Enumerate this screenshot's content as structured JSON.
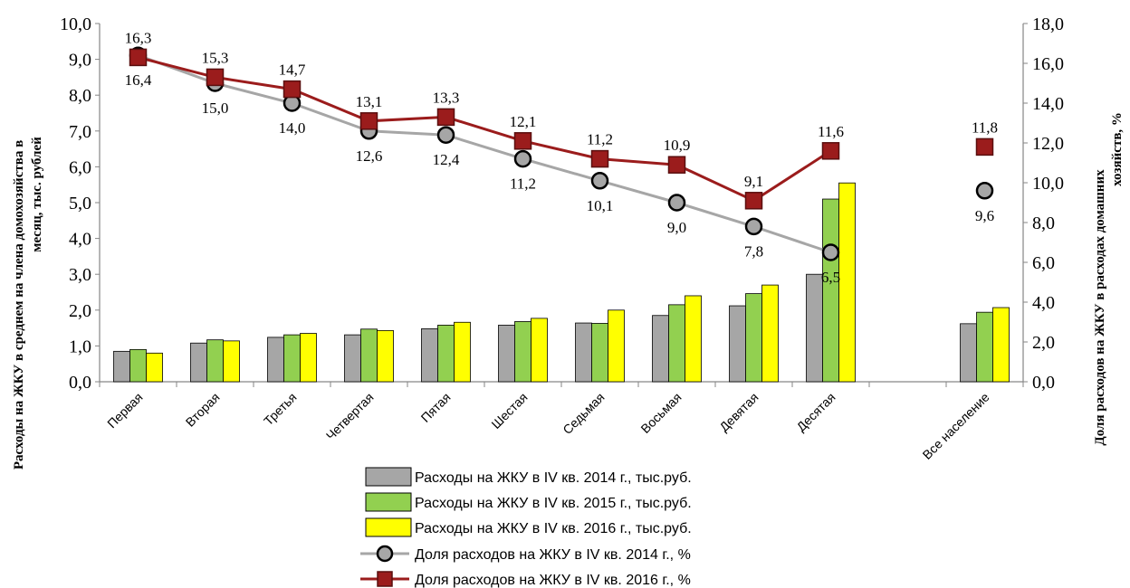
{
  "chart_data": {
    "type": "bar+line",
    "categories": [
      "Первая",
      "Вторая",
      "Третья",
      "Четвертая",
      "Пятая",
      "Шестая",
      "Седьмая",
      "Восьмая",
      "Девятая",
      "Десятая",
      "",
      "Все население"
    ],
    "bar_series": [
      {
        "name": "Расходы на ЖКУ в IV кв. 2014 г., тыс.руб.",
        "color": "#a6a6a6",
        "values": [
          0.85,
          1.08,
          1.24,
          1.31,
          1.48,
          1.58,
          1.64,
          1.85,
          2.12,
          3.0,
          null,
          1.62
        ]
      },
      {
        "name": "Расходы на ЖКУ в IV кв. 2015 г., тыс.руб.",
        "color": "#92d050",
        "values": [
          0.9,
          1.17,
          1.31,
          1.47,
          1.58,
          1.68,
          1.63,
          2.15,
          2.46,
          5.1,
          null,
          1.94
        ]
      },
      {
        "name": "Расходы на ЖКУ в IV кв. 2016 г., тыс.руб.",
        "color": "#ffff00",
        "values": [
          0.8,
          1.14,
          1.35,
          1.43,
          1.66,
          1.77,
          2.0,
          2.4,
          2.7,
          5.55,
          null,
          2.07
        ]
      }
    ],
    "line_series": [
      {
        "name": "Доля расходов на ЖКУ в IV кв. 2014 г., %",
        "color": "#a6a6a6",
        "marker": "circle",
        "values": [
          16.4,
          15.0,
          14.0,
          12.6,
          12.4,
          11.2,
          10.1,
          9.0,
          7.8,
          6.5,
          null,
          9.6
        ],
        "labels": [
          "16,4",
          "15,0",
          "14,0",
          "12,6",
          "12,4",
          "11,2",
          "10,1",
          "9,0",
          "7,8",
          "6,5",
          "",
          "9,6"
        ]
      },
      {
        "name": "Доля расходов на ЖКУ в IV кв. 2016 г., %",
        "color": "#9b1c1c",
        "marker": "square",
        "values": [
          16.3,
          15.3,
          14.7,
          13.1,
          13.3,
          12.1,
          11.2,
          10.9,
          9.1,
          11.6,
          null,
          11.8
        ],
        "labels": [
          "16,3",
          "15,3",
          "14,7",
          "13,1",
          "13,3",
          "12,1",
          "11,2",
          "10,9",
          "9,1",
          "11,6",
          "",
          "11,8"
        ]
      }
    ],
    "y_left": {
      "label_line1": "Расходы на ЖКУ в среднем на члена домохозяйства в",
      "label_line2": "месяц, тыс. рублей",
      "range": [
        0,
        10
      ],
      "ticks": [
        "0,0",
        "1,0",
        "2,0",
        "3,0",
        "4,0",
        "5,0",
        "6,0",
        "7,0",
        "8,0",
        "9,0",
        "10,0"
      ]
    },
    "y_right": {
      "label_line1": "Доля расходов на ЖКУ в расходах домашних",
      "label_line2": "хозяйств, %",
      "range": [
        0,
        18
      ],
      "ticks": [
        "0,0",
        "2,0",
        "4,0",
        "6,0",
        "8,0",
        "10,0",
        "12,0",
        "14,0",
        "16,0",
        "18,0"
      ]
    },
    "grid": false,
    "legend_position": "bottom"
  }
}
